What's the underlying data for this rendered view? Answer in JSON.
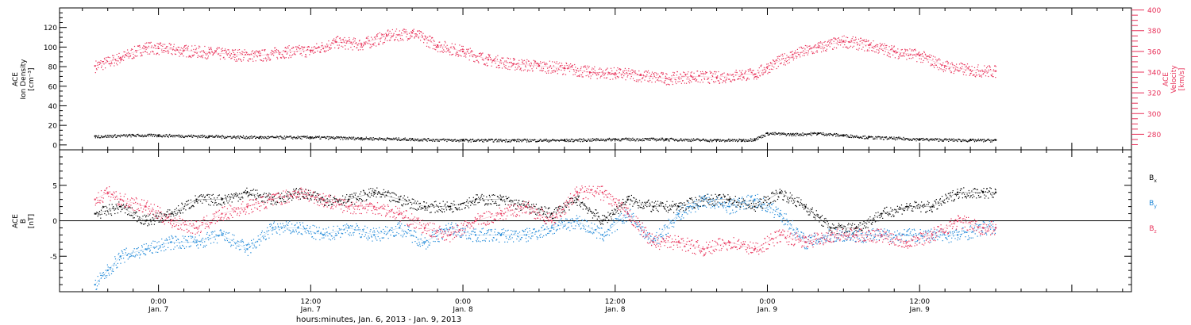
{
  "chart_data": [
    {
      "type": "scatter",
      "panel": "plasma",
      "y_left": {
        "label_lines": [
          "ACE",
          "Ion Density",
          "[cm⁻³]"
        ],
        "ticks": [
          0,
          20,
          40,
          60,
          80,
          100,
          120
        ],
        "lim": [
          -5,
          140
        ]
      },
      "y_right": {
        "label_lines": [
          "ACE",
          "Velocity",
          "[km/s]"
        ],
        "ticks": [
          280,
          300,
          320,
          340,
          360,
          380,
          400
        ],
        "lim": [
          265,
          402
        ],
        "color": "#e8325a"
      },
      "series": [
        {
          "name": "",
          "axis": "right",
          "color": "#e8325a",
          "x_hours": [
            -5,
            -3,
            -1,
            0,
            2,
            4,
            6,
            8,
            10,
            12,
            14,
            16,
            18,
            20,
            22,
            24,
            26,
            28,
            30,
            32,
            34,
            36,
            38,
            40,
            42,
            44,
            46,
            47,
            48,
            50,
            52,
            54,
            56,
            58,
            60,
            62,
            64,
            66
          ],
          "values": [
            346,
            354,
            364,
            363,
            361,
            359,
            357,
            356,
            360,
            361,
            369,
            367,
            375,
            378,
            366,
            360,
            352,
            348,
            346,
            344,
            340,
            339,
            337,
            334,
            336,
            335,
            338,
            338,
            345,
            357,
            364,
            370,
            366,
            360,
            356,
            346,
            342,
            341
          ]
        },
        {
          "name": "",
          "axis": "left",
          "color": "#000000",
          "x_hours": [
            -5,
            -2,
            0,
            4,
            8,
            12,
            16,
            20,
            24,
            28,
            32,
            36,
            40,
            44,
            46,
            47,
            48,
            50,
            52,
            54,
            56,
            60,
            64,
            66
          ],
          "values": [
            9,
            10,
            10,
            9,
            8,
            8,
            7,
            6,
            5,
            5,
            5,
            6,
            6,
            5,
            5,
            6,
            12,
            11,
            12,
            10,
            8,
            6,
            5,
            5
          ]
        }
      ]
    },
    {
      "type": "scatter",
      "panel": "magnetic field",
      "y_left": {
        "label_lines": [
          "ACE",
          "B",
          "[nT]"
        ],
        "ticks": [
          -5,
          0,
          5
        ],
        "lim": [
          -10,
          10
        ]
      },
      "legend": {
        "placement": "right",
        "entries": [
          {
            "main": "B",
            "sub": "x",
            "color": "#000000"
          },
          {
            "main": "B",
            "sub": "y",
            "color": "#1f88d8"
          },
          {
            "main": "B",
            "sub": "z",
            "color": "#e8325a"
          }
        ]
      },
      "series": [
        {
          "name": "Bx",
          "color": "#000000",
          "x_hours": [
            -5,
            -3,
            -1,
            1,
            3,
            5,
            7,
            9,
            11,
            13,
            15,
            17,
            19,
            21,
            23,
            25,
            27,
            29,
            31,
            33,
            35,
            37,
            39,
            41,
            43,
            45,
            47,
            49,
            51,
            53,
            55,
            57,
            59,
            61,
            63,
            65,
            66
          ],
          "values": [
            1,
            2,
            0,
            1,
            3,
            3,
            4,
            3,
            4,
            3,
            3,
            4,
            3,
            2,
            2,
            3,
            3,
            2,
            1,
            3,
            0,
            3,
            2,
            2,
            3,
            3,
            2,
            4,
            2,
            -1,
            -1,
            1,
            2,
            2,
            4,
            4,
            4
          ]
        },
        {
          "name": "By",
          "color": "#1f88d8",
          "x_hours": [
            -5,
            -4,
            -3,
            -1,
            1,
            3,
            5,
            7,
            9,
            11,
            13,
            15,
            17,
            19,
            21,
            23,
            25,
            27,
            29,
            31,
            33,
            35,
            37,
            39,
            41,
            43,
            45,
            47,
            49,
            51,
            53,
            55,
            57,
            59,
            61,
            63,
            65,
            66
          ],
          "values": [
            -9,
            -7,
            -5,
            -4,
            -3,
            -3,
            -2,
            -4,
            -1,
            -1,
            -2,
            -1,
            -2,
            -1,
            -3,
            -1,
            -2,
            -2,
            -2,
            -1,
            0,
            -2,
            1,
            -3,
            1,
            3,
            2,
            3,
            1,
            -3,
            -2,
            -2,
            -2,
            -2,
            -2,
            -2,
            -1,
            -1
          ]
        },
        {
          "name": "Bz",
          "color": "#e8325a",
          "x_hours": [
            -5,
            -4,
            -3,
            -1,
            1,
            3,
            5,
            7,
            9,
            11,
            13,
            15,
            17,
            19,
            21,
            23,
            25,
            27,
            29,
            31,
            33,
            35,
            37,
            39,
            41,
            43,
            45,
            47,
            49,
            51,
            53,
            55,
            57,
            59,
            61,
            63,
            65,
            66
          ],
          "values": [
            3,
            4,
            3,
            2,
            0,
            -1,
            1,
            2,
            3,
            4,
            3,
            2,
            2,
            1,
            -1,
            -2,
            0,
            1,
            2,
            0,
            4,
            4,
            1,
            -3,
            -3,
            -4,
            -3,
            -4,
            -2,
            -3,
            -2,
            -2,
            -2,
            -3,
            -2,
            0,
            -1,
            -1
          ]
        }
      ]
    }
  ],
  "x_axis": {
    "ticks": [
      {
        "hour": 0,
        "time": "0:00",
        "day": "Jan. 7"
      },
      {
        "hour": 12,
        "time": "12:00",
        "day": "Jan. 7"
      },
      {
        "hour": 24,
        "time": "0:00",
        "day": "Jan. 8"
      },
      {
        "hour": 36,
        "time": "12:00",
        "day": "Jan. 8"
      },
      {
        "hour": 48,
        "time": "0:00",
        "day": "Jan. 9"
      },
      {
        "hour": 60,
        "time": "12:00",
        "day": "Jan. 9"
      }
    ],
    "lim": [
      -7.8,
      76.7
    ],
    "label": "hours:minutes, Jan.  6, 2013 - Jan.  9, 2013"
  }
}
